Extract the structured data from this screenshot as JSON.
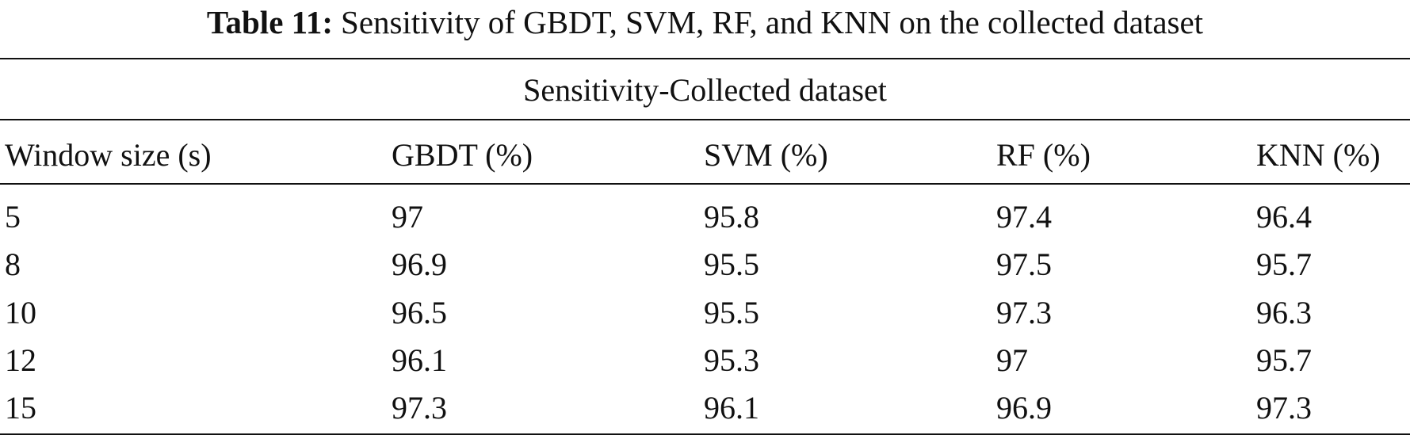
{
  "caption": {
    "label": "Table 11:",
    "text": "Sensitivity of GBDT, SVM, RF, and KNN on the collected dataset"
  },
  "table": {
    "group_header": "Sensitivity-Collected dataset",
    "columns": [
      "Window size (s)",
      "GBDT (%)",
      "SVM (%)",
      "RF (%)",
      "KNN (%)"
    ],
    "rows": [
      [
        5,
        97,
        95.8,
        97.4,
        96.4
      ],
      [
        8,
        96.9,
        95.5,
        97.5,
        95.7
      ],
      [
        10,
        96.5,
        95.5,
        97.3,
        96.3
      ],
      [
        12,
        96.1,
        95.3,
        97,
        95.7
      ],
      [
        15,
        97.3,
        96.1,
        96.9,
        97.3
      ]
    ]
  }
}
